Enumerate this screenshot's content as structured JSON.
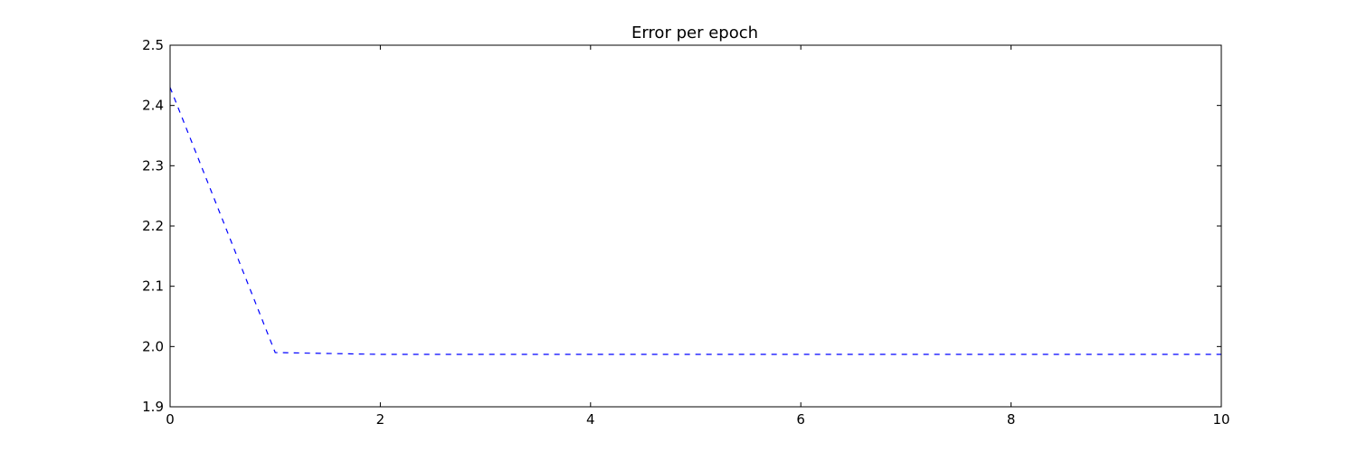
{
  "chart_data": {
    "type": "line",
    "title": "Error per epoch",
    "xlabel": "",
    "ylabel": "",
    "xlim": [
      0,
      10
    ],
    "ylim": [
      1.9,
      2.5
    ],
    "xticks": [
      0,
      2,
      4,
      6,
      8,
      10
    ],
    "yticks": [
      1.9,
      2.0,
      2.1,
      2.2,
      2.3,
      2.4,
      2.5
    ],
    "xtick_labels": [
      "0",
      "2",
      "4",
      "6",
      "8",
      "10"
    ],
    "ytick_labels": [
      "1.9",
      "2.0",
      "2.1",
      "2.2",
      "2.3",
      "2.4",
      "2.5"
    ],
    "grid": false,
    "series": [
      {
        "color": "#0000ff",
        "linestyle": "dashed",
        "x": [
          0,
          1,
          2,
          3,
          4,
          5,
          6,
          7,
          8,
          9,
          10
        ],
        "y": [
          2.43,
          1.99,
          1.987,
          1.987,
          1.987,
          1.987,
          1.987,
          1.987,
          1.987,
          1.987,
          1.987
        ]
      }
    ]
  }
}
